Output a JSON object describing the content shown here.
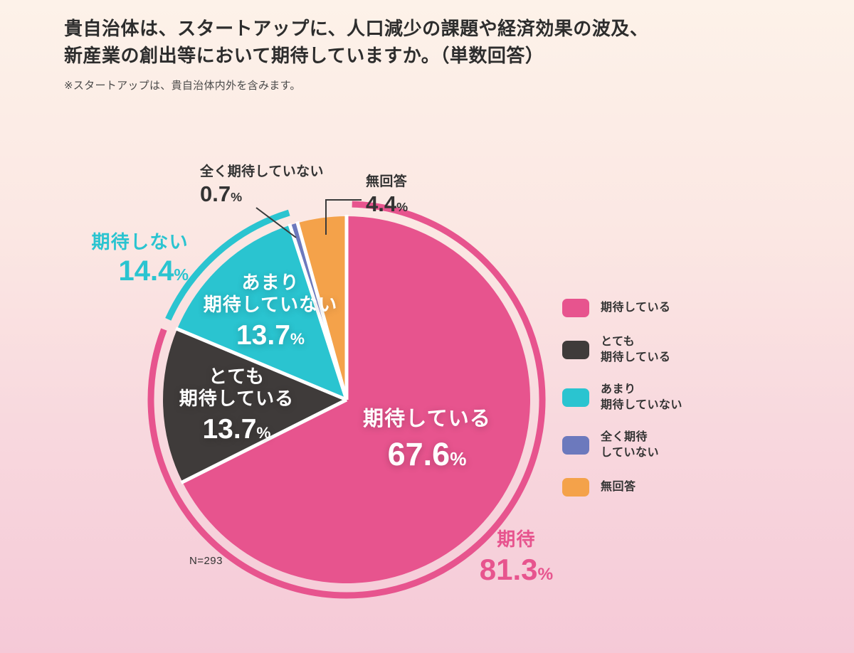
{
  "page": {
    "title_line1": "貴自治体は、スタートアップに、人口減少の課題や経済効果の波及、",
    "title_line2": "新産業の創出等において期待していますか。（単数回答）",
    "note": "※スタートアップは、貴自治体内外を含みます。",
    "n_label": "N=293"
  },
  "chart_data": {
    "type": "pie",
    "title": "貴自治体は、スタートアップに、人口減少の課題や経済効果の波及、新産業の創出等において期待していますか。（単数回答）",
    "note": "※スタートアップは、貴自治体内外を含みます。",
    "n": 293,
    "unit": "%",
    "direction": "clockwise",
    "start_angle": "top",
    "slices": [
      {
        "label": "期待している",
        "value": 67.6,
        "color": "#e7548e"
      },
      {
        "label": "とても期待している",
        "label_lines": [
          "とても",
          "期待している"
        ],
        "value": 13.7,
        "color": "#3f3b3a"
      },
      {
        "label": "あまり期待していない",
        "label_lines": [
          "あまり",
          "期待していない"
        ],
        "value": 13.7,
        "color": "#2ac4d0"
      },
      {
        "label": "全く期待していない",
        "value": 0.7,
        "color": "#6c79bd"
      },
      {
        "label": "無回答",
        "value": 4.4,
        "color": "#f4a24a"
      }
    ],
    "outer_arcs": [
      {
        "label": "期待",
        "value": 81.3,
        "start": 0,
        "color": "#e7548e"
      },
      {
        "label": "期待しない",
        "value": 14.4,
        "start": 81.3,
        "color": "#2ac4d0"
      }
    ],
    "legend": [
      {
        "lines": [
          "期待している"
        ],
        "color": "#e7548e"
      },
      {
        "lines": [
          "とても",
          "期待している"
        ],
        "color": "#3f3b3a"
      },
      {
        "lines": [
          "あまり",
          "期待していない"
        ],
        "color": "#2ac4d0"
      },
      {
        "lines": [
          "全く期待",
          "していない"
        ],
        "color": "#6c79bd"
      },
      {
        "lines": [
          "無回答"
        ],
        "color": "#f4a24a"
      }
    ]
  }
}
